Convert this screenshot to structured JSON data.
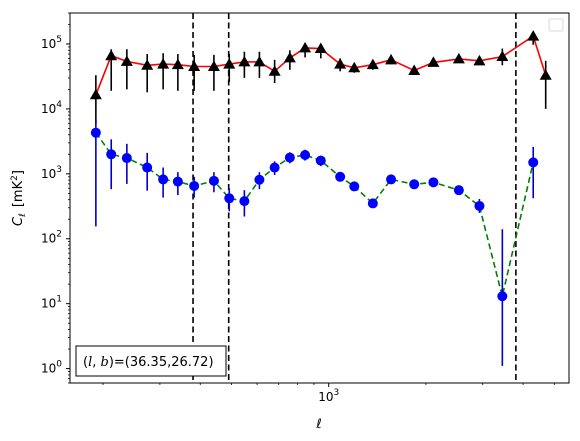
{
  "chart_data": {
    "type": "scatter",
    "title": "",
    "xlabel": "ℓ",
    "ylabel_main": "C",
    "ylabel_sub": "ℓ",
    "ylabel_unit_pre": "[mK",
    "ylabel_unit_sup": "2",
    "ylabel_unit_post": "]",
    "xscale": "log",
    "yscale": "log",
    "xlim": [
      158,
      5550
    ],
    "ylim": [
      0.6,
      300000
    ],
    "x_ticks": [
      {
        "value": 1000,
        "base": "10",
        "exp": "3"
      }
    ],
    "y_ticks": [
      {
        "value": 1,
        "base": "10",
        "exp": "0"
      },
      {
        "value": 10,
        "base": "10",
        "exp": "1"
      },
      {
        "value": 100,
        "base": "10",
        "exp": "2"
      },
      {
        "value": 1000,
        "base": "10",
        "exp": "3"
      },
      {
        "value": 10000,
        "base": "10",
        "exp": "4"
      },
      {
        "value": 100000,
        "base": "10",
        "exp": "5"
      }
    ],
    "vlines": [
      380,
      490,
      3800
    ],
    "legend": "top-right (empty)",
    "annotation": "(l, b)=(36.35,26.72)",
    "annotation_parts": {
      "open": "(",
      "l": "l",
      "comma": ", ",
      "b": "b",
      "rest": ")=(36.35,26.72)"
    },
    "series": [
      {
        "marker": "triangle",
        "line_color": "#ff0000",
        "line_style": "solid",
        "marker_color": "#000000",
        "error_color": "#000000",
        "points": [
          {
            "x": 190,
            "y": 16500,
            "lo": 6000,
            "hi": 33000
          },
          {
            "x": 212,
            "y": 66000,
            "lo": 19000,
            "hi": 83000
          },
          {
            "x": 237,
            "y": 54000,
            "lo": 20000,
            "hi": 83000
          },
          {
            "x": 274,
            "y": 47000,
            "lo": 18000,
            "hi": 70000
          },
          {
            "x": 307,
            "y": 49000,
            "lo": 20000,
            "hi": 72000
          },
          {
            "x": 341,
            "y": 48000,
            "lo": 19000,
            "hi": 70000
          },
          {
            "x": 383,
            "y": 45000,
            "lo": 19000,
            "hi": 68000
          },
          {
            "x": 441,
            "y": 45000,
            "lo": 19000,
            "hi": 68000
          },
          {
            "x": 492,
            "y": 49000,
            "lo": 26000,
            "hi": 70000
          },
          {
            "x": 548,
            "y": 53000,
            "lo": 30000,
            "hi": 76000
          },
          {
            "x": 610,
            "y": 53000,
            "lo": 30000,
            "hi": 76000
          },
          {
            "x": 680,
            "y": 38000,
            "lo": 25000,
            "hi": 57000
          },
          {
            "x": 758,
            "y": 61000,
            "lo": 40000,
            "hi": 80000
          },
          {
            "x": 845,
            "y": 87000,
            "lo": 62000,
            "hi": 100000
          },
          {
            "x": 945,
            "y": 85000,
            "lo": 60000,
            "hi": 100000
          },
          {
            "x": 1085,
            "y": 49000,
            "lo": 38000,
            "hi": 60000
          },
          {
            "x": 1200,
            "y": 43000,
            "lo": 36000,
            "hi": 50000
          },
          {
            "x": 1370,
            "y": 48000,
            "lo": 40000,
            "hi": 56000
          },
          {
            "x": 1560,
            "y": 57000,
            "lo": 49000,
            "hi": 66000
          },
          {
            "x": 1840,
            "y": 39000,
            "lo": 34000,
            "hi": 45000
          },
          {
            "x": 2110,
            "y": 52000,
            "lo": 45000,
            "hi": 60000
          },
          {
            "x": 2530,
            "y": 59000,
            "lo": 51000,
            "hi": 68000
          },
          {
            "x": 2930,
            "y": 55000,
            "lo": 48000,
            "hi": 63000
          },
          {
            "x": 3450,
            "y": 64000,
            "lo": 47000,
            "hi": 85000
          },
          {
            "x": 4300,
            "y": 132000,
            "lo": 97000,
            "hi": 145000
          },
          {
            "x": 4700,
            "y": 33000,
            "lo": 10000,
            "hi": 55000
          }
        ]
      },
      {
        "marker": "circle",
        "line_color": "#008000",
        "line_style": "dashed",
        "marker_color": "#0000ff",
        "error_color": "#0000cc",
        "points": [
          {
            "x": 190,
            "y": 4300,
            "lo": 155,
            "hi": 6800
          },
          {
            "x": 212,
            "y": 2000,
            "lo": 580,
            "hi": 3400
          },
          {
            "x": 237,
            "y": 1750,
            "lo": 700,
            "hi": 2900
          },
          {
            "x": 274,
            "y": 1250,
            "lo": 550,
            "hi": 2100
          },
          {
            "x": 307,
            "y": 820,
            "lo": 430,
            "hi": 1250
          },
          {
            "x": 341,
            "y": 760,
            "lo": 470,
            "hi": 1060
          },
          {
            "x": 383,
            "y": 650,
            "lo": 430,
            "hi": 900
          },
          {
            "x": 441,
            "y": 780,
            "lo": 520,
            "hi": 1060
          },
          {
            "x": 492,
            "y": 420,
            "lo": 265,
            "hi": 600
          },
          {
            "x": 548,
            "y": 380,
            "lo": 220,
            "hi": 560
          },
          {
            "x": 610,
            "y": 810,
            "lo": 580,
            "hi": 1060
          },
          {
            "x": 680,
            "y": 1250,
            "lo": 960,
            "hi": 1560
          },
          {
            "x": 758,
            "y": 1780,
            "lo": 1450,
            "hi": 2150
          },
          {
            "x": 845,
            "y": 1950,
            "lo": 1600,
            "hi": 2350
          },
          {
            "x": 945,
            "y": 1600,
            "lo": 1320,
            "hi": 1900
          },
          {
            "x": 1085,
            "y": 900,
            "lo": 760,
            "hi": 1060
          },
          {
            "x": 1200,
            "y": 640,
            "lo": 560,
            "hi": 720
          },
          {
            "x": 1370,
            "y": 350,
            "lo": 310,
            "hi": 400
          },
          {
            "x": 1560,
            "y": 820,
            "lo": 730,
            "hi": 920
          },
          {
            "x": 1840,
            "y": 690,
            "lo": 620,
            "hi": 770
          },
          {
            "x": 2110,
            "y": 740,
            "lo": 670,
            "hi": 820
          },
          {
            "x": 2530,
            "y": 560,
            "lo": 500,
            "hi": 630
          },
          {
            "x": 2930,
            "y": 320,
            "lo": 250,
            "hi": 410
          },
          {
            "x": 3450,
            "y": 13,
            "lo": 1.1,
            "hi": 140
          },
          {
            "x": 4300,
            "y": 1500,
            "lo": 420,
            "hi": 2600
          }
        ]
      }
    ]
  }
}
